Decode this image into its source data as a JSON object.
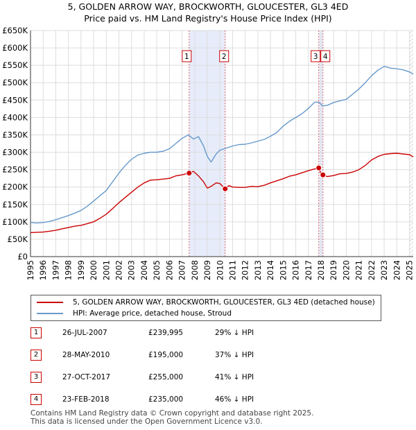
{
  "chart_data": {
    "type": "line",
    "title": "5, GOLDEN ARROW WAY, BROCKWORTH, GLOUCESTER, GL3 4ED",
    "subtitle": "Price paid vs. HM Land Registry's House Price Index (HPI)",
    "xlim": [
      1995,
      2025.3
    ],
    "ylim": [
      0,
      650000
    ],
    "x_ticks": [
      1995,
      1996,
      1997,
      1998,
      1999,
      2000,
      2001,
      2002,
      2003,
      2004,
      2005,
      2006,
      2007,
      2008,
      2009,
      2010,
      2011,
      2012,
      2013,
      2014,
      2015,
      2016,
      2017,
      2018,
      2019,
      2020,
      2021,
      2022,
      2023,
      2024,
      2025
    ],
    "y_ticks": [
      0,
      50000,
      100000,
      150000,
      200000,
      250000,
      300000,
      350000,
      400000,
      450000,
      500000,
      550000,
      600000,
      650000
    ],
    "y_tick_labels": [
      "£0",
      "£50K",
      "£100K",
      "£150K",
      "£200K",
      "£250K",
      "£300K",
      "£350K",
      "£400K",
      "£450K",
      "£500K",
      "£550K",
      "£600K",
      "£650K"
    ],
    "grid": true,
    "series": [
      {
        "name": "5, GOLDEN ARROW WAY, BROCKWORTH, GLOUCESTER, GL3 4ED (detached house)",
        "color": "#cc0000",
        "x": [
          1995,
          1995.5,
          1996,
          1996.5,
          1997,
          1997.5,
          1998,
          1998.5,
          1999,
          1999.5,
          2000,
          2000.5,
          2001,
          2001.5,
          2002,
          2002.5,
          2003,
          2003.5,
          2004,
          2004.5,
          2005,
          2005.5,
          2006,
          2006.5,
          2007,
          2007.56,
          2007.9,
          2008.3,
          2008.7,
          2009.0,
          2009.3,
          2009.7,
          2010.0,
          2010.41,
          2010.7,
          2011,
          2011.5,
          2012,
          2012.5,
          2013,
          2013.5,
          2014,
          2014.5,
          2015,
          2015.5,
          2016,
          2016.5,
          2017,
          2017.5,
          2017.82,
          2018.0,
          2018.15,
          2018.5,
          2019,
          2019.5,
          2020,
          2020.5,
          2021,
          2021.5,
          2022,
          2022.5,
          2023,
          2023.5,
          2024,
          2024.5,
          2025,
          2025.3
        ],
        "y": [
          69000,
          70000,
          70500,
          73000,
          75500,
          80000,
          83500,
          87500,
          90000,
          95000,
          100000,
          110000,
          122000,
          138000,
          155000,
          170000,
          185000,
          200000,
          212000,
          220000,
          221000,
          223000,
          225000,
          232000,
          235000,
          239995,
          245000,
          232000,
          215000,
          197000,
          202000,
          212000,
          210000,
          195000,
          204000,
          200000,
          199000,
          199000,
          202000,
          201000,
          205000,
          212000,
          218000,
          224000,
          231000,
          235000,
          241000,
          247000,
          252000,
          255000,
          238000,
          235000,
          230000,
          233000,
          238000,
          239000,
          243000,
          250000,
          262000,
          278000,
          288000,
          294000,
          296000,
          297000,
          295000,
          293000,
          287000
        ]
      },
      {
        "name": "HPI: Average price, detached house, Stroud",
        "color": "#6699cc",
        "x": [
          1995,
          1995.5,
          1996,
          1996.5,
          1997,
          1997.5,
          1998,
          1998.5,
          1999,
          1999.5,
          2000,
          2000.5,
          2001,
          2001.5,
          2002,
          2002.5,
          2003,
          2003.5,
          2004,
          2004.5,
          2005,
          2005.5,
          2006,
          2006.5,
          2007,
          2007.5,
          2007.9,
          2008.3,
          2008.7,
          2009.0,
          2009.3,
          2009.7,
          2010.0,
          2010.5,
          2011,
          2011.5,
          2012,
          2012.5,
          2013,
          2013.5,
          2014,
          2014.5,
          2015,
          2015.5,
          2016,
          2016.5,
          2017,
          2017.5,
          2017.82,
          2018.15,
          2018.5,
          2019,
          2019.5,
          2020,
          2020.5,
          2021,
          2021.5,
          2022,
          2022.5,
          2023,
          2023.5,
          2024,
          2024.5,
          2025,
          2025.3
        ],
        "y": [
          98000,
          96500,
          98000,
          101000,
          106000,
          112000,
          118000,
          125000,
          133000,
          145000,
          160000,
          175000,
          190000,
          215000,
          240000,
          262000,
          280000,
          292000,
          297000,
          300000,
          300000,
          303000,
          310000,
          325000,
          340000,
          350000,
          338000,
          345000,
          318000,
          288000,
          272000,
          295000,
          306000,
          312000,
          318000,
          322000,
          323000,
          327000,
          332000,
          337000,
          346000,
          357000,
          375000,
          389000,
          400000,
          411000,
          426000,
          444000,
          444000,
          433000,
          435000,
          443000,
          448000,
          452000,
          467000,
          482000,
          500000,
          520000,
          536000,
          547000,
          542000,
          540000,
          537000,
          531000,
          525000
        ]
      }
    ],
    "sales": [
      {
        "label": "1",
        "x": 2007.56,
        "y": 239995
      },
      {
        "label": "2",
        "x": 2010.41,
        "y": 195000
      },
      {
        "label": "3",
        "x": 2017.82,
        "y": 255000
      },
      {
        "label": "4",
        "x": 2018.15,
        "y": 235000
      }
    ],
    "shaded_ranges": [
      [
        2007.56,
        2010.41
      ],
      [
        2017.82,
        2018.15
      ]
    ],
    "hatched_from": 2025.0
  },
  "legend": {
    "property_label": "5, GOLDEN ARROW WAY, BROCKWORTH, GLOUCESTER, GL3 4ED (detached house)",
    "hpi_label": "HPI: Average price, detached house, Stroud"
  },
  "sales_table": [
    {
      "num": "1",
      "date": "26-JUL-2007",
      "price": "£239,995",
      "hpi": "29% ↓ HPI"
    },
    {
      "num": "2",
      "date": "28-MAY-2010",
      "price": "£195,000",
      "hpi": "37% ↓ HPI"
    },
    {
      "num": "3",
      "date": "27-OCT-2017",
      "price": "£255,000",
      "hpi": "41% ↓ HPI"
    },
    {
      "num": "4",
      "date": "23-FEB-2018",
      "price": "£235,000",
      "hpi": "46% ↓ HPI"
    }
  ],
  "footer": {
    "line1": "Contains HM Land Registry data © Crown copyright and database right 2025.",
    "line2": "This data is licensed under the Open Government Licence v3.0."
  }
}
